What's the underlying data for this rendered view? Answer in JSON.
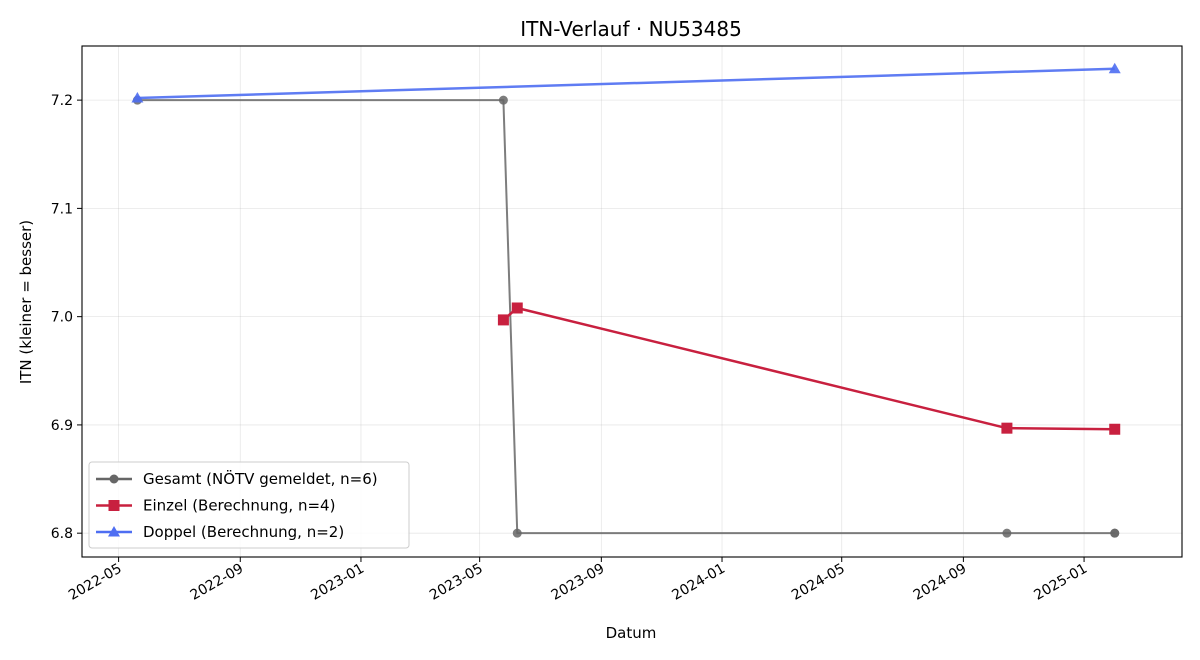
{
  "chart_data": {
    "type": "line",
    "title": "ITN-Verlauf · NU53485",
    "xlabel": "Datum",
    "ylabel": "ITN  (kleiner = besser)",
    "x_ticks": [
      "2022-05",
      "2022-09",
      "2023-01",
      "2023-05",
      "2023-09",
      "2024-01",
      "2024-05",
      "2024-09",
      "2025-01"
    ],
    "y_ticks": [
      "6.8",
      "6.9",
      "7.0",
      "7.1",
      "7.2"
    ],
    "xlim": [
      "2022-03-25",
      "2025-04-10"
    ],
    "ylim": [
      6.778,
      7.25
    ],
    "grid": true,
    "legend_position": "lower-left",
    "series": [
      {
        "name": "Gesamt (NÖTV gemeldet, n=6)",
        "color": "#666666",
        "marker": "circle",
        "points": [
          {
            "x": "2022-05-20",
            "y": 7.2
          },
          {
            "x": "2023-05-25",
            "y": 7.2
          },
          {
            "x": "2023-06-08",
            "y": 6.8
          },
          {
            "x": "2024-10-15",
            "y": 6.8
          },
          {
            "x": "2025-02-01",
            "y": 6.8
          },
          {
            "x": "2025-02-01",
            "y": 6.8
          }
        ]
      },
      {
        "name": "Einzel (Berechnung, n=4)",
        "color": "#c8203f",
        "marker": "square",
        "points": [
          {
            "x": "2023-05-25",
            "y": 6.997
          },
          {
            "x": "2023-06-08",
            "y": 7.008
          },
          {
            "x": "2024-10-15",
            "y": 6.897
          },
          {
            "x": "2025-02-01",
            "y": 6.896
          }
        ]
      },
      {
        "name": "Doppel (Berechnung, n=2)",
        "color": "#4e6ef2",
        "marker": "triangle",
        "points": [
          {
            "x": "2022-05-20",
            "y": 7.202
          },
          {
            "x": "2025-02-01",
            "y": 7.229
          }
        ]
      }
    ]
  }
}
